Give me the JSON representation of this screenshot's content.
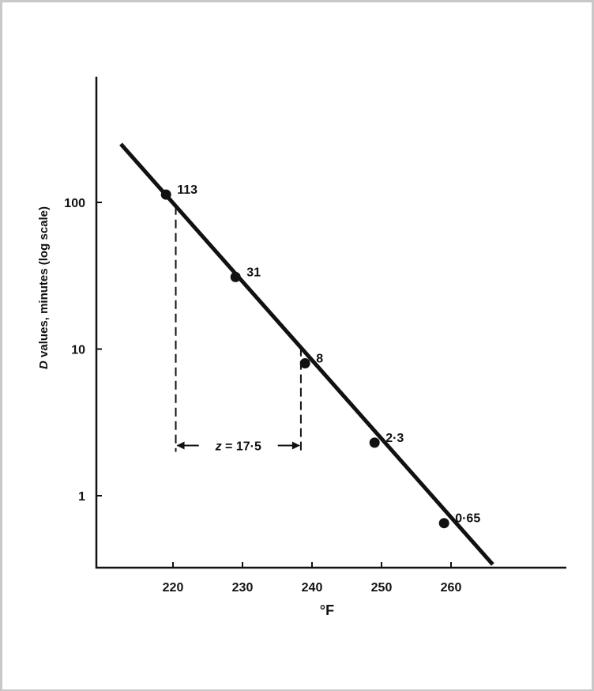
{
  "chart_data": {
    "type": "scatter",
    "ylog": true,
    "xlabel": "°F",
    "ylabel_italic": "D",
    "ylabel_rest": " values, minutes (log scale)",
    "xticks": [
      220,
      230,
      240,
      250,
      260
    ],
    "yticks": [
      1,
      10,
      100
    ],
    "xlim": [
      208.8,
      276
    ],
    "ylim": [
      0.35,
      700
    ],
    "points": [
      {
        "x": 219,
        "y": 113,
        "label": "113"
      },
      {
        "x": 229,
        "y": 31,
        "label": "31"
      },
      {
        "x": 239,
        "y": 8,
        "label": "8"
      },
      {
        "x": 249,
        "y": 2.3,
        "label": "2·3"
      },
      {
        "x": 259,
        "y": 0.65,
        "label": "0·65"
      }
    ],
    "fit_line": {
      "x": [
        212.5,
        266
      ],
      "y": [
        250,
        0.34
      ]
    },
    "annotation": {
      "text": "z = 17.5",
      "parts": [
        "z",
        " = 17·5"
      ],
      "x_start": 220.4,
      "x_end": 238.4,
      "y_level": 2.2
    }
  }
}
